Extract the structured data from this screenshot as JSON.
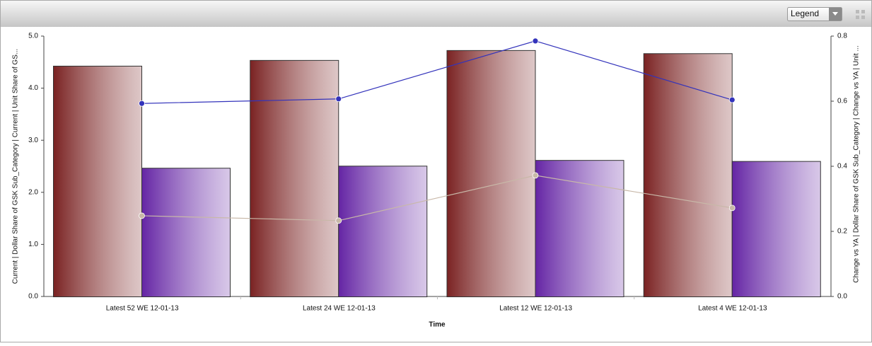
{
  "legend_button": "Legend",
  "chart_data": {
    "type": "bar_line",
    "x_label": "Time",
    "y_label": "Current | Dollar Share of GSK Sub_Category | Current | Unit Share of GS...",
    "y2_label": "Change vs YA | Dollar Share of GSK Sub_Category | Change vs YA | Unit ...",
    "categories": [
      "Latest 52 WE 12-01-13",
      "Latest 24 WE 12-01-13",
      "Latest 12 WE 12-01-13",
      "Latest 4 WE 12-01-13"
    ],
    "ylim": [
      0,
      5
    ],
    "yticks": [
      {
        "value": 0,
        "label": "0.0"
      },
      {
        "value": 1,
        "label": "1.0"
      },
      {
        "value": 2,
        "label": "2.0"
      },
      {
        "value": 3,
        "label": "3.0"
      },
      {
        "value": 4,
        "label": "4.0"
      },
      {
        "value": 5,
        "label": "5.0"
      }
    ],
    "y2lim": [
      0,
      0.8
    ],
    "y2ticks": [
      {
        "value": 0,
        "label": "0.0"
      },
      0.2,
      0.4,
      0.6,
      0.8
    ],
    "series": [
      {
        "type": "bar",
        "color": "#7a2222",
        "values": [
          4.43,
          4.54,
          4.73,
          4.67
        ]
      },
      {
        "type": "bar",
        "color": "#6424a4",
        "values": [
          2.47,
          2.51,
          2.62,
          2.6
        ]
      },
      {
        "type": "line",
        "axis": "y2",
        "color": "#3333bb",
        "values": [
          0.593,
          0.607,
          0.785,
          0.604
        ]
      },
      {
        "type": "line",
        "axis": "y2",
        "color": "#c8b8a8",
        "values": [
          0.248,
          0.233,
          0.372,
          0.272
        ]
      }
    ]
  }
}
